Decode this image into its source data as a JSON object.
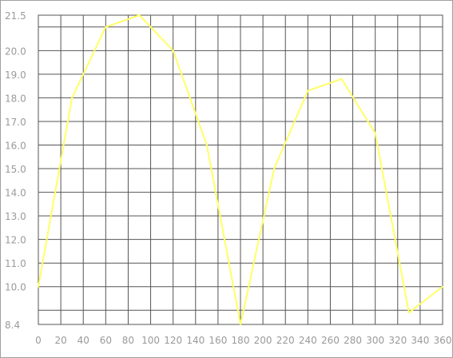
{
  "chart_data": {
    "type": "line",
    "title": "",
    "xlabel": "",
    "ylabel": "",
    "xlim": [
      0,
      360
    ],
    "ylim": [
      8.4,
      21.5
    ],
    "grid": true,
    "x_ticks": [
      0,
      20,
      40,
      60,
      80,
      100,
      120,
      140,
      160,
      180,
      200,
      220,
      240,
      260,
      280,
      300,
      320,
      340,
      360
    ],
    "y_ticks": [
      {
        "value": 8.4,
        "label": "8.4"
      },
      {
        "value": 10.0,
        "label": "10.0"
      },
      {
        "value": 11.0,
        "label": "11.0"
      },
      {
        "value": 12.0,
        "label": "12.0"
      },
      {
        "value": 13.0,
        "label": "13.0"
      },
      {
        "value": 14.0,
        "label": "14.0"
      },
      {
        "value": 15.0,
        "label": "15.0"
      },
      {
        "value": 16.0,
        "label": "16.0"
      },
      {
        "value": 17.0,
        "label": "17.0"
      },
      {
        "value": 18.0,
        "label": "18.0"
      },
      {
        "value": 19.0,
        "label": "19.0"
      },
      {
        "value": 20.0,
        "label": "20.0"
      },
      {
        "value": 21.5,
        "label": "21.5"
      }
    ],
    "extra_grid_y": [
      9.0,
      21.0
    ],
    "series": [
      {
        "color": "#ffff66",
        "x": [
          0,
          30,
          60,
          90,
          120,
          150,
          180,
          210,
          240,
          270,
          300,
          330,
          360
        ],
        "y": [
          10.0,
          18.0,
          21.0,
          21.5,
          20.0,
          16.0,
          8.4,
          15.0,
          18.3,
          18.8,
          16.5,
          8.9,
          10.0
        ]
      }
    ]
  }
}
